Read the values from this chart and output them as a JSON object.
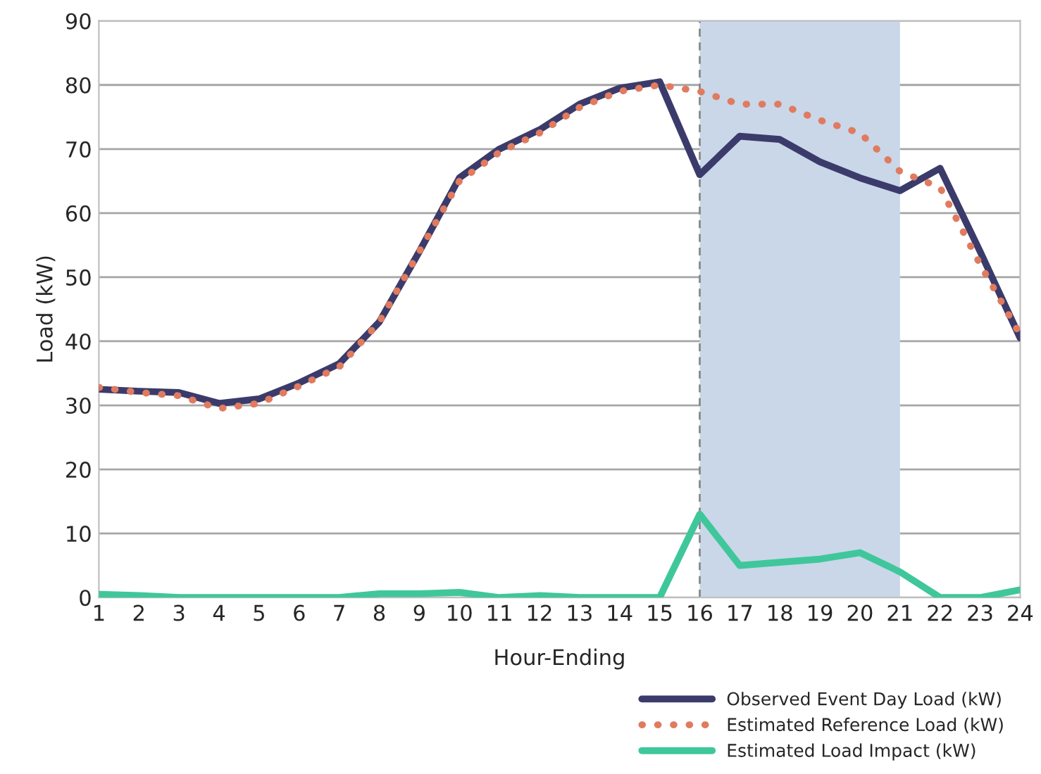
{
  "chart_data": {
    "type": "line",
    "xlabel": "Hour-Ending",
    "ylabel": "Load (kW)",
    "x": [
      1,
      2,
      3,
      4,
      5,
      6,
      7,
      8,
      9,
      10,
      11,
      12,
      13,
      14,
      15,
      16,
      17,
      18,
      19,
      20,
      21,
      22,
      23,
      24
    ],
    "series": [
      {
        "name": "Observed Event Day Load (kW)",
        "color": "#3b3b6b",
        "line_style": "solid",
        "values": [
          32.5,
          32.2,
          32,
          30.3,
          31,
          33.5,
          36.5,
          43,
          54,
          65.5,
          70,
          73,
          77,
          79.5,
          80.5,
          66,
          72,
          71.5,
          68,
          65.5,
          63.5,
          67,
          54,
          40.5
        ]
      },
      {
        "name": "Estimated Reference Load (kW)",
        "color": "#e07b5f",
        "line_style": "dotted",
        "values": [
          32.8,
          32,
          31.5,
          29.5,
          30.3,
          33,
          36,
          43,
          54,
          65,
          69.5,
          72.5,
          76.5,
          79,
          80,
          79,
          77,
          77,
          74.5,
          72.5,
          66.5,
          64,
          52,
          41
        ]
      },
      {
        "name": "Estimated Load Impact (kW)",
        "color": "#3fc79b",
        "line_style": "solid",
        "values": [
          0.5,
          0.3,
          0,
          0,
          0,
          0,
          0,
          0.6,
          0.6,
          0.8,
          0,
          0.3,
          0,
          0,
          0,
          13,
          5,
          5.5,
          6,
          7,
          4,
          0,
          0,
          1.2
        ]
      }
    ],
    "xlim": [
      1,
      24
    ],
    "xticks": [
      1,
      2,
      3,
      4,
      5,
      6,
      7,
      8,
      9,
      10,
      11,
      12,
      13,
      14,
      15,
      16,
      17,
      18,
      19,
      20,
      21,
      22,
      23,
      24
    ],
    "ylim": [
      0,
      90
    ],
    "yticks": [
      0,
      10,
      20,
      30,
      40,
      50,
      60,
      70,
      80,
      90
    ],
    "grid": "y",
    "legend": "bottom right",
    "bands": [
      {
        "axis": "x",
        "from": 16,
        "to": 21,
        "color": "#c9d7e9"
      }
    ],
    "ref_lines": [
      {
        "axis": "x",
        "value": 16,
        "color": "#888888",
        "line_style": "dashed"
      }
    ]
  }
}
